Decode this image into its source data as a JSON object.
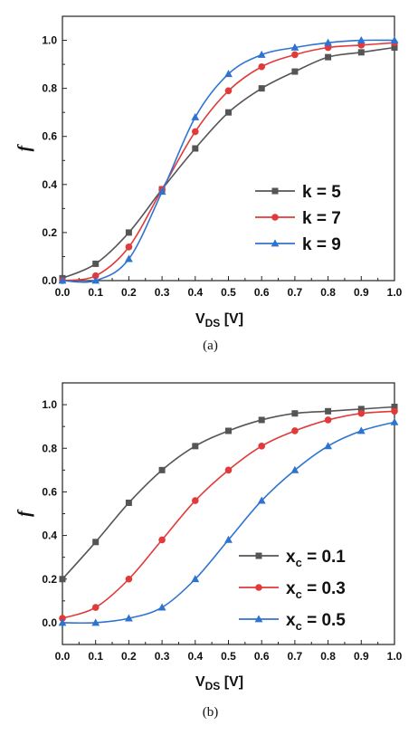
{
  "chart_data": [
    {
      "type": "line",
      "xlabel": "VDS [V]",
      "xlabel_main": "V",
      "xlabel_sub": "DS",
      "xlabel_unit": " [V]",
      "ylabel": "f",
      "caption": "(a)",
      "xlim": [
        0,
        1
      ],
      "ylim": [
        0,
        1.1
      ],
      "xticks": [
        "0.0",
        "0.1",
        "0.2",
        "0.3",
        "0.4",
        "0.5",
        "0.6",
        "0.7",
        "0.8",
        "0.9",
        "1.0"
      ],
      "yticks": [
        "0.0",
        "0.2",
        "0.4",
        "0.6",
        "0.8",
        "1.0"
      ],
      "legend_position": "bottom-right",
      "series": [
        {
          "name": "k = 5",
          "label_main": "k = 5",
          "label_sub": "",
          "label_tail": "",
          "color": "#555555",
          "marker": "square",
          "x": [
            0,
            0.1,
            0.2,
            0.3,
            0.4,
            0.5,
            0.6,
            0.7,
            0.8,
            0.9,
            1.0
          ],
          "values": [
            0.01,
            0.07,
            0.2,
            0.38,
            0.55,
            0.7,
            0.8,
            0.87,
            0.93,
            0.95,
            0.97
          ]
        },
        {
          "name": "k = 7",
          "label_main": "k = 7",
          "label_sub": "",
          "label_tail": "",
          "color": "#e03a3a",
          "marker": "circle",
          "x": [
            0,
            0.1,
            0.2,
            0.3,
            0.4,
            0.5,
            0.6,
            0.7,
            0.8,
            0.9,
            1.0
          ],
          "values": [
            0.0,
            0.02,
            0.14,
            0.38,
            0.62,
            0.79,
            0.89,
            0.94,
            0.97,
            0.98,
            0.99
          ]
        },
        {
          "name": "k = 9",
          "label_main": "k = 9",
          "label_sub": "",
          "label_tail": "",
          "color": "#2f73d0",
          "marker": "triangle",
          "x": [
            0,
            0.1,
            0.2,
            0.3,
            0.4,
            0.5,
            0.6,
            0.7,
            0.8,
            0.9,
            1.0
          ],
          "values": [
            0.0,
            0.0,
            0.09,
            0.37,
            0.68,
            0.86,
            0.94,
            0.97,
            0.99,
            1.0,
            1.0
          ]
        }
      ]
    },
    {
      "type": "line",
      "xlabel": "VDS [V]",
      "xlabel_main": "V",
      "xlabel_sub": "DS",
      "xlabel_unit": " [V]",
      "ylabel": "f",
      "caption": "(b)",
      "xlim": [
        0,
        1
      ],
      "ylim": [
        -0.1,
        1.1
      ],
      "xticks": [
        "0.0",
        "0.1",
        "0.2",
        "0.3",
        "0.4",
        "0.5",
        "0.6",
        "0.7",
        "0.8",
        "0.9",
        "1.0"
      ],
      "yticks": [
        "0.0",
        "0.2",
        "0.4",
        "0.6",
        "0.8",
        "1.0"
      ],
      "legend_position": "bottom-right",
      "series": [
        {
          "name": "xc = 0.1",
          "label_main": "x",
          "label_sub": "c",
          "label_tail": " = 0.1",
          "color": "#555555",
          "marker": "square",
          "x": [
            0,
            0.1,
            0.2,
            0.3,
            0.4,
            0.5,
            0.6,
            0.7,
            0.8,
            0.9,
            1.0
          ],
          "values": [
            0.2,
            0.37,
            0.55,
            0.7,
            0.81,
            0.88,
            0.93,
            0.96,
            0.97,
            0.98,
            0.99
          ]
        },
        {
          "name": "xc = 0.3",
          "label_main": "x",
          "label_sub": "c",
          "label_tail": " = 0.3",
          "color": "#e03a3a",
          "marker": "circle",
          "x": [
            0,
            0.1,
            0.2,
            0.3,
            0.4,
            0.5,
            0.6,
            0.7,
            0.8,
            0.9,
            1.0
          ],
          "values": [
            0.02,
            0.07,
            0.2,
            0.38,
            0.56,
            0.7,
            0.81,
            0.88,
            0.93,
            0.96,
            0.97
          ]
        },
        {
          "name": "xc = 0.5",
          "label_main": "x",
          "label_sub": "c",
          "label_tail": " = 0.5",
          "color": "#2f73d0",
          "marker": "triangle",
          "x": [
            0,
            0.1,
            0.2,
            0.3,
            0.4,
            0.5,
            0.6,
            0.7,
            0.8,
            0.9,
            1.0
          ],
          "values": [
            0.0,
            0.0,
            0.02,
            0.07,
            0.2,
            0.38,
            0.56,
            0.7,
            0.81,
            0.88,
            0.92
          ]
        }
      ]
    }
  ]
}
